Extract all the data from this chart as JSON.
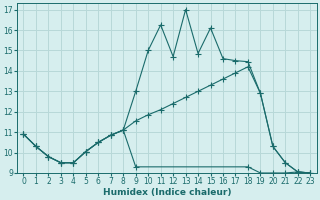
{
  "xlabel": "Humidex (Indice chaleur)",
  "background_color": "#d6eeee",
  "grid_color": "#b8d8d8",
  "line_color": "#1a6b6b",
  "xlim": [
    -0.5,
    23.5
  ],
  "ylim": [
    9,
    17.3
  ],
  "xticks": [
    0,
    1,
    2,
    3,
    4,
    5,
    6,
    7,
    8,
    9,
    10,
    11,
    12,
    13,
    14,
    15,
    16,
    17,
    18,
    19,
    20,
    21,
    22,
    23
  ],
  "yticks": [
    9,
    10,
    11,
    12,
    13,
    14,
    15,
    16,
    17
  ],
  "line1_x": [
    0,
    1,
    2,
    3,
    4,
    5,
    6,
    7,
    8,
    9,
    10,
    11,
    12,
    13,
    14,
    15,
    16,
    17,
    18,
    19,
    20,
    21,
    22,
    23
  ],
  "line1_y": [
    10.9,
    10.3,
    9.8,
    9.5,
    9.5,
    10.05,
    10.5,
    10.85,
    11.1,
    13.0,
    15.0,
    16.25,
    14.7,
    17.0,
    14.85,
    16.1,
    14.6,
    14.5,
    14.45,
    12.9,
    10.3,
    9.5,
    9.05,
    9.0
  ],
  "line2_x": [
    0,
    1,
    2,
    3,
    4,
    5,
    6,
    7,
    8,
    9,
    10,
    11,
    12,
    13,
    14,
    15,
    16,
    17,
    18,
    19,
    20,
    21,
    22,
    23
  ],
  "line2_y": [
    10.9,
    10.3,
    9.8,
    9.5,
    9.5,
    10.05,
    10.5,
    10.85,
    11.1,
    11.55,
    11.85,
    12.1,
    12.4,
    12.7,
    13.0,
    13.3,
    13.6,
    13.9,
    14.2,
    12.9,
    10.3,
    9.5,
    9.05,
    9.0
  ],
  "line3_x": [
    0,
    1,
    2,
    3,
    4,
    5,
    6,
    7,
    8,
    9,
    18,
    19,
    20,
    21,
    22,
    23
  ],
  "line3_y": [
    10.9,
    10.3,
    9.8,
    9.5,
    9.5,
    10.05,
    10.5,
    10.85,
    11.1,
    9.3,
    9.3,
    9.0,
    9.0,
    9.0,
    9.05,
    9.0
  ]
}
